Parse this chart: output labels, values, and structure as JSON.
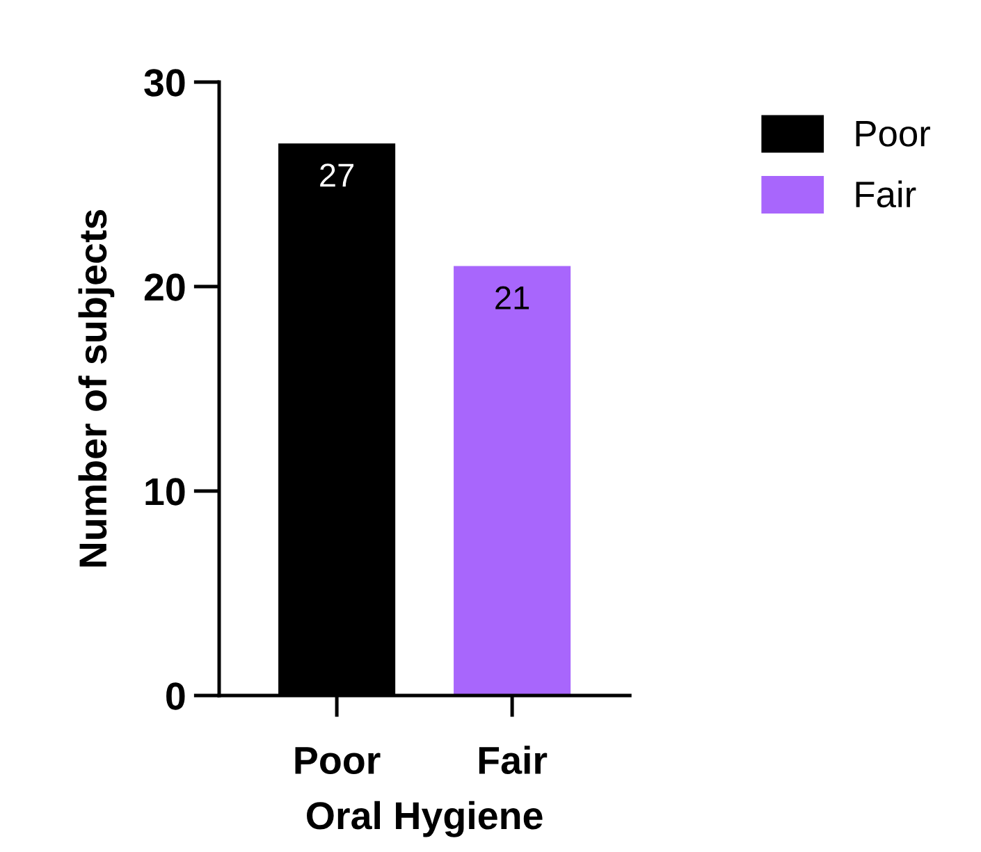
{
  "chart_data": {
    "type": "bar",
    "xlabel": "Oral Hygiene",
    "ylabel": "Number of subjects",
    "categories": [
      "Poor",
      "Fair"
    ],
    "series": [
      {
        "name": "Poor",
        "color": "#000000",
        "values": [
          27,
          null
        ]
      },
      {
        "name": "Fair",
        "color": "#a866fc",
        "values": [
          null,
          21
        ]
      }
    ],
    "ylim": [
      0,
      30
    ],
    "yticks": [
      0,
      10,
      20,
      30
    ],
    "grid": false,
    "legend": "top right",
    "data_labels": true
  }
}
